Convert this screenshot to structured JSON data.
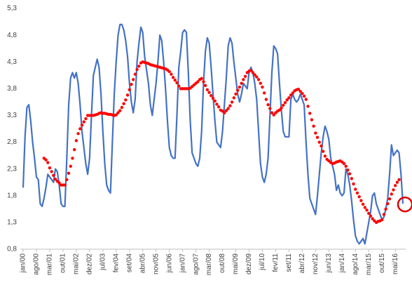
{
  "chart_data": {
    "type": "line",
    "ylim": [
      0.8,
      5.3
    ],
    "yticks": [
      {
        "value": 0.8,
        "label": "0,8"
      },
      {
        "value": 1.3,
        "label": "1,3"
      },
      {
        "value": 1.8,
        "label": "1,8"
      },
      {
        "value": 2.3,
        "label": "2,3"
      },
      {
        "value": 2.8,
        "label": "2,8"
      },
      {
        "value": 3.3,
        "label": "3,3"
      },
      {
        "value": 3.8,
        "label": "3,8"
      },
      {
        "value": 4.3,
        "label": "4,3"
      },
      {
        "value": 4.8,
        "label": "4,8"
      },
      {
        "value": 5.3,
        "label": "5,3"
      }
    ],
    "categories": [
      "jan/00",
      null,
      null,
      null,
      null,
      null,
      null,
      "ago/00",
      null,
      null,
      null,
      null,
      null,
      null,
      "mar/01",
      null,
      null,
      null,
      null,
      null,
      null,
      "out/01",
      null,
      null,
      null,
      null,
      null,
      null,
      "mai/02",
      null,
      null,
      null,
      null,
      null,
      null,
      "dez/02",
      null,
      null,
      null,
      null,
      null,
      null,
      "jul/03",
      null,
      null,
      null,
      null,
      null,
      null,
      "fev/04",
      null,
      null,
      null,
      null,
      null,
      null,
      "set/04",
      null,
      null,
      null,
      null,
      null,
      null,
      "abr/05",
      null,
      null,
      null,
      null,
      null,
      null,
      "nov/05",
      null,
      null,
      null,
      null,
      null,
      null,
      "jun/06",
      null,
      null,
      null,
      null,
      null,
      null,
      "jan/07",
      null,
      null,
      null,
      null,
      null,
      null,
      "ago/07",
      null,
      null,
      null,
      null,
      null,
      null,
      "mar/08",
      null,
      null,
      null,
      null,
      null,
      null,
      "out/08",
      null,
      null,
      null,
      null,
      null,
      null,
      "mai/09",
      null,
      null,
      null,
      null,
      null,
      null,
      "dez/09",
      null,
      null,
      null,
      null,
      null,
      null,
      "jul/10",
      null,
      null,
      null,
      null,
      null,
      null,
      "fev/11",
      null,
      null,
      null,
      null,
      null,
      null,
      "set/11",
      null,
      null,
      null,
      null,
      null,
      null,
      "abr/12",
      null,
      null,
      null,
      null,
      null,
      null,
      "nov/12",
      null,
      null,
      null,
      null,
      null,
      null,
      "jun/13",
      null,
      null,
      null,
      null,
      null,
      null,
      "jan/14",
      null,
      null,
      null,
      null,
      null,
      null,
      "ago/14",
      null,
      null,
      null,
      null,
      null,
      null,
      "mar/15",
      null,
      null,
      null,
      null,
      null,
      null,
      "out/15",
      null,
      null,
      null,
      null,
      null,
      null,
      "mai/16",
      null,
      null,
      null,
      null
    ],
    "series": [
      {
        "color": "#4472c4",
        "style": "line",
        "values": [
          1.95,
          2.9,
          3.45,
          3.5,
          3.2,
          2.8,
          2.5,
          2.15,
          2.1,
          1.65,
          1.6,
          1.75,
          1.95,
          2.2,
          2.15,
          2.1,
          2.05,
          2.3,
          2.25,
          2.0,
          1.65,
          1.6,
          1.6,
          2.5,
          3.5,
          4.0,
          4.1,
          4.0,
          4.1,
          3.9,
          3.5,
          3.0,
          2.7,
          2.4,
          2.2,
          2.5,
          3.3,
          4.05,
          4.2,
          4.35,
          4.2,
          3.7,
          3.0,
          2.4,
          2.0,
          1.9,
          1.85,
          2.8,
          3.7,
          4.3,
          4.8,
          5.0,
          5.0,
          4.9,
          4.7,
          4.4,
          3.9,
          3.55,
          3.35,
          3.6,
          4.3,
          4.65,
          4.95,
          4.85,
          4.4,
          4.15,
          3.9,
          3.5,
          3.3,
          3.6,
          3.9,
          4.3,
          4.8,
          4.7,
          4.3,
          3.8,
          3.2,
          2.7,
          2.55,
          2.5,
          2.5,
          3.3,
          4.2,
          4.5,
          4.85,
          4.9,
          4.85,
          4.1,
          3.2,
          2.6,
          2.5,
          2.4,
          2.35,
          2.5,
          3.0,
          3.9,
          4.5,
          4.75,
          4.65,
          4.2,
          3.7,
          3.2,
          2.8,
          2.75,
          2.7,
          3.0,
          3.5,
          4.0,
          4.6,
          4.75,
          4.65,
          4.3,
          4.0,
          3.7,
          3.55,
          3.7,
          3.9,
          3.85,
          3.8,
          4.1,
          4.2,
          4.1,
          3.9,
          3.6,
          3.0,
          2.4,
          2.15,
          2.05,
          2.2,
          2.5,
          3.3,
          4.1,
          4.6,
          4.55,
          4.45,
          3.9,
          3.4,
          3.0,
          2.9,
          2.9,
          2.9,
          3.6,
          3.7,
          3.6,
          3.55,
          3.6,
          3.7,
          3.6,
          3.5,
          2.8,
          2.2,
          1.75,
          1.65,
          1.55,
          1.45,
          1.8,
          2.2,
          2.6,
          2.9,
          3.1,
          3.0,
          2.85,
          2.5,
          2.35,
          2.2,
          1.9,
          2.0,
          1.85,
          1.8,
          1.85,
          2.3,
          2.2,
          2.0,
          1.7,
          1.35,
          1.05,
          0.95,
          0.9,
          0.95,
          1.0,
          0.9,
          1.1,
          1.3,
          1.5,
          1.8,
          1.85,
          1.65,
          1.55,
          1.45,
          1.35,
          1.4,
          1.55,
          1.75,
          2.2,
          2.75,
          2.55,
          2.6,
          2.65,
          2.6,
          2.2,
          1.65
        ]
      },
      {
        "color": "#ff0000",
        "style": "dots",
        "values": [
          null,
          null,
          null,
          null,
          null,
          null,
          null,
          null,
          null,
          null,
          null,
          2.5,
          2.47,
          2.42,
          2.32,
          2.25,
          2.18,
          2.11,
          2.07,
          2.04,
          2.0,
          2.0,
          2.0,
          2.1,
          2.22,
          2.35,
          2.5,
          2.66,
          2.83,
          2.96,
          3.05,
          3.12,
          3.18,
          3.24,
          3.3,
          3.3,
          3.3,
          3.3,
          3.31,
          3.32,
          3.34,
          3.35,
          3.34,
          3.34,
          3.33,
          3.32,
          3.32,
          3.31,
          3.3,
          3.31,
          3.35,
          3.39,
          3.45,
          3.52,
          3.59,
          3.68,
          3.78,
          3.88,
          3.97,
          4.07,
          4.16,
          4.22,
          4.28,
          4.3,
          4.29,
          4.28,
          4.27,
          4.25,
          4.24,
          4.23,
          4.22,
          4.21,
          4.2,
          4.19,
          4.18,
          4.17,
          4.15,
          4.12,
          4.07,
          4.01,
          3.96,
          3.91,
          3.85,
          3.8,
          3.8,
          3.8,
          3.8,
          3.8,
          3.81,
          3.84,
          3.87,
          3.9,
          3.93,
          3.97,
          3.99,
          3.93,
          3.86,
          3.78,
          3.73,
          3.67,
          3.62,
          3.57,
          3.51,
          3.46,
          3.4,
          3.38,
          3.35,
          3.39,
          3.43,
          3.48,
          3.55,
          3.63,
          3.7,
          3.77,
          3.83,
          3.9,
          3.97,
          4.03,
          4.1,
          4.13,
          4.14,
          4.1,
          4.06,
          4.02,
          3.97,
          3.9,
          3.83,
          3.72,
          3.6,
          3.5,
          3.43,
          3.35,
          3.31,
          3.35,
          3.38,
          3.4,
          3.44,
          3.49,
          3.54,
          3.59,
          3.63,
          3.68,
          3.72,
          3.76,
          3.78,
          3.79,
          3.75,
          3.71,
          3.66,
          3.6,
          3.47,
          3.34,
          3.22,
          3.1,
          2.97,
          2.89,
          2.8,
          2.73,
          2.63,
          2.54,
          2.48,
          2.45,
          2.42,
          2.4,
          2.41,
          2.43,
          2.44,
          2.45,
          2.43,
          2.4,
          2.35,
          2.28,
          2.21,
          2.12,
          2.02,
          1.92,
          1.85,
          1.78,
          1.71,
          1.64,
          1.58,
          1.53,
          1.47,
          1.42,
          1.37,
          1.33,
          1.3,
          1.32,
          1.33,
          1.35,
          1.45,
          1.55,
          1.65,
          1.74,
          1.83,
          1.91,
          1.99,
          2.05,
          2.1,
          null,
          null
        ]
      }
    ]
  }
}
